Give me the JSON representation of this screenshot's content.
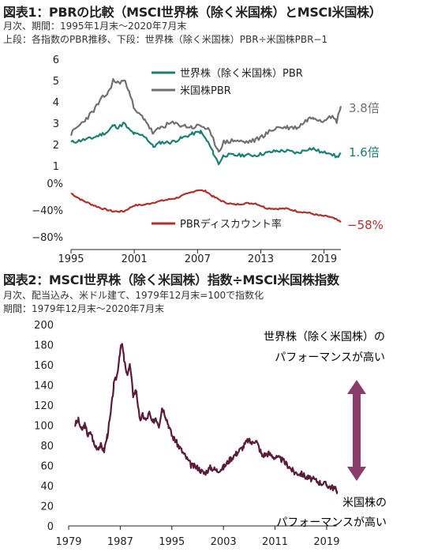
{
  "top": {
    "title": "図表1：PBRの比較（MSCI世界株（除く米国株）とMSCI米国株）",
    "sub1": "月次、期間：1995年1月末～2020年7月末",
    "sub2": "上段：各指数のPBR推移、下段：世界株（除く米国株）PBR÷米国株PBR−1"
  },
  "bottom": {
    "title": "図表2：MSCI世界株（除く米国株）指数÷MSCI米国株指数",
    "sub1": "月次、配当込み、米ドル建て、1979年12月末=100で指数化",
    "sub2": "期間：1979年12月末～2020年7月末",
    "note_top_1": "世界株（除く米国株）の",
    "note_top_2": "パフォーマンスが高い",
    "note_bot_1": "米国株の",
    "note_bot_2": "パフォーマンスが高い"
  },
  "colors": {
    "world": "#1a7f74",
    "us": "#707070",
    "discount": "#b0302c",
    "relative": "#5c1a3b",
    "arrow": "#8a3c6a"
  },
  "chart_data": [
    {
      "type": "line",
      "x": [
        1995.0,
        1996.0,
        1997.0,
        1998.0,
        1998.5,
        1999.0,
        1999.5,
        2000.0,
        2000.5,
        2001.0,
        2002.0,
        2002.8,
        2003.5,
        2004.5,
        2005.5,
        2006.5,
        2007.3,
        2008.0,
        2008.5,
        2009.0,
        2009.5,
        2010.5,
        2011.5,
        2012.5,
        2013.5,
        2014.5,
        2015.5,
        2016.5,
        2017.5,
        2018.0,
        2018.9,
        2019.5,
        2020.2,
        2020.6
      ],
      "series": [
        {
          "name": "世界株（除く米国株）PBR",
          "values": [
            2.1,
            2.2,
            2.3,
            2.5,
            2.6,
            2.9,
            2.8,
            3.0,
            2.7,
            2.5,
            2.4,
            1.9,
            2.1,
            2.1,
            2.3,
            2.5,
            2.6,
            2.1,
            1.6,
            1.1,
            1.5,
            1.5,
            1.5,
            1.5,
            1.6,
            1.7,
            1.7,
            1.6,
            1.8,
            1.8,
            1.6,
            1.65,
            1.4,
            1.6
          ]
        },
        {
          "name": "米国株PBR",
          "values": [
            2.5,
            3.0,
            3.5,
            4.2,
            4.4,
            5.0,
            4.9,
            5.0,
            4.6,
            3.6,
            3.2,
            2.5,
            2.8,
            3.0,
            2.9,
            2.8,
            2.9,
            2.7,
            2.2,
            1.7,
            2.1,
            2.2,
            2.1,
            2.2,
            2.5,
            2.8,
            2.8,
            2.8,
            3.2,
            3.3,
            3.1,
            3.4,
            3.1,
            3.8
          ]
        }
      ],
      "ylim": [
        1,
        6
      ],
      "yticks": [
        "1",
        "2",
        "3",
        "4",
        "5",
        "6"
      ],
      "end_labels": [
        "3.8倍",
        "1.6倍"
      ]
    },
    {
      "type": "line",
      "x": [
        1995.0,
        1996.0,
        1997.0,
        1998.0,
        1999.0,
        2000.0,
        2001.0,
        2002.0,
        2003.0,
        2004.0,
        2005.0,
        2006.0,
        2007.0,
        2007.8,
        2008.5,
        2009.5,
        2010.5,
        2011.5,
        2012.5,
        2013.5,
        2014.5,
        2015.5,
        2016.5,
        2017.5,
        2018.5,
        2019.5,
        2020.0,
        2020.6
      ],
      "series": [
        {
          "name": "PBRディスカウント率",
          "values": [
            -15,
            -25,
            -32,
            -38,
            -42,
            -42,
            -33,
            -32,
            -28,
            -25,
            -22,
            -16,
            -10,
            -12,
            -20,
            -28,
            -32,
            -30,
            -30,
            -37,
            -38,
            -38,
            -42,
            -44,
            -48,
            -50,
            -53,
            -58
          ]
        }
      ],
      "ylim": [
        -80,
        0
      ],
      "yticks": [
        "0%",
        "−40%",
        "−80%"
      ],
      "xticks": [
        "1995",
        "2001",
        "2007",
        "2013",
        "2019"
      ],
      "end_labels": [
        "−58%"
      ]
    },
    {
      "type": "line",
      "x": [
        1979.9,
        1980.5,
        1981.0,
        1981.5,
        1982.0,
        1982.5,
        1983.0,
        1983.5,
        1984.0,
        1984.5,
        1985.0,
        1985.5,
        1986.0,
        1986.5,
        1987.0,
        1987.3,
        1987.6,
        1988.0,
        1988.5,
        1989.0,
        1989.5,
        1990.0,
        1990.5,
        1991.0,
        1991.5,
        1992.0,
        1992.5,
        1993.0,
        1993.5,
        1994.0,
        1994.5,
        1995.0,
        1995.5,
        1996.0,
        1997.0,
        1998.0,
        1999.0,
        2000.0,
        2001.0,
        2002.0,
        2003.0,
        2004.0,
        2005.0,
        2006.0,
        2006.8,
        2007.5,
        2008.0,
        2008.5,
        2009.0,
        2010.0,
        2011.0,
        2012.0,
        2013.0,
        2014.0,
        2015.0,
        2016.0,
        2017.0,
        2018.0,
        2019.0,
        2019.5,
        2020.0,
        2020.6
      ],
      "series": [
        {
          "name": "",
          "values": [
            100,
            105,
            95,
            100,
            90,
            92,
            80,
            78,
            80,
            75,
            90,
            110,
            140,
            150,
            175,
            180,
            165,
            150,
            160,
            130,
            135,
            105,
            110,
            105,
            112,
            102,
            108,
            100,
            118,
            110,
            100,
            90,
            85,
            80,
            70,
            60,
            58,
            52,
            58,
            55,
            58,
            66,
            72,
            78,
            85,
            82,
            86,
            78,
            70,
            72,
            68,
            66,
            60,
            53,
            52,
            48,
            46,
            43,
            41,
            39,
            38,
            35
          ]
        }
      ],
      "ylim": [
        0,
        200
      ],
      "yticks": [
        "0",
        "20",
        "40",
        "60",
        "80",
        "100",
        "120",
        "140",
        "160",
        "180",
        "200"
      ],
      "xticks": [
        "1979",
        "1987",
        "1995",
        "2003",
        "2011",
        "2019"
      ]
    }
  ]
}
